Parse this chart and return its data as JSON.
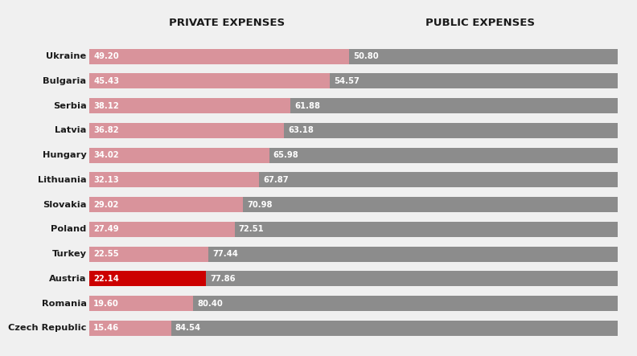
{
  "countries": [
    "Ukraine",
    "Bulgaria",
    "Serbia",
    "Latvia",
    "Hungary",
    "Lithuania",
    "Slovakia",
    "Poland",
    "Turkey",
    "Austria",
    "Romania",
    "Czech Republic"
  ],
  "private": [
    49.2,
    45.43,
    38.12,
    36.82,
    34.02,
    32.13,
    29.02,
    27.49,
    22.55,
    22.14,
    19.6,
    15.46
  ],
  "public": [
    50.8,
    54.57,
    61.88,
    63.18,
    65.98,
    67.87,
    70.98,
    72.51,
    77.44,
    77.86,
    80.4,
    84.54
  ],
  "private_color_default": "#d9939b",
  "private_color_austria": "#cc0000",
  "public_color": "#8c8c8c",
  "background_color": "#f0f0f0",
  "text_color_white": "#ffffff",
  "text_color_dark": "#1a1a1a",
  "label_private": "PRIVATE EXPENSES",
  "label_public": "PUBLIC EXPENSES",
  "bar_height": 0.62,
  "figsize": [
    7.92,
    4.43
  ],
  "dpi": 100
}
